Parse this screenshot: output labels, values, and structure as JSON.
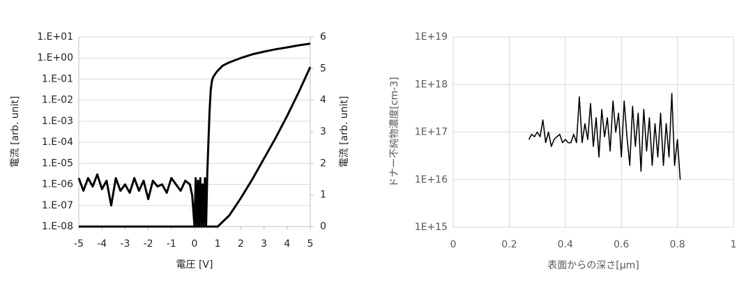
{
  "chart_data": [
    {
      "type": "line",
      "x_label": "電圧 [V]",
      "y_label": "電流 [arb. unit]",
      "y2_label": "電流 [arb. unit]",
      "xlim": [
        -5,
        5
      ],
      "xticks": [
        -5,
        -4,
        -3,
        -2,
        -1,
        0,
        1,
        2,
        3,
        4,
        5
      ],
      "ylim": [
        1e-08,
        10
      ],
      "ylog": true,
      "yticks": [
        {
          "value": 1e-08,
          "label": "1.E-08"
        },
        {
          "value": 1e-07,
          "label": "1.E-07"
        },
        {
          "value": 1e-06,
          "label": "1.E-06"
        },
        {
          "value": 1e-05,
          "label": "1.E-05"
        },
        {
          "value": 0.0001,
          "label": "1.E-04"
        },
        {
          "value": 0.001,
          "label": "1.E-03"
        },
        {
          "value": 0.01,
          "label": "1.E-02"
        },
        {
          "value": 0.1,
          "label": "1.E-01"
        },
        {
          "value": 1,
          "label": "1.E+00"
        },
        {
          "value": 10,
          "label": "1.E+01"
        }
      ],
      "y2lim": [
        0,
        6
      ],
      "y2ticks": [
        0,
        1,
        2,
        3,
        4,
        5,
        6
      ],
      "grid": [
        "y"
      ],
      "series": [
        {
          "color": "#000000",
          "x": [
            -5,
            -4.8,
            -4.6,
            -4.4,
            -4.2,
            -4,
            -3.8,
            -3.6,
            -3.4,
            -3.2,
            -3,
            -2.8,
            -2.6,
            -2.4,
            -2.2,
            -2,
            -1.8,
            -1.6,
            -1.4,
            -1.2,
            -1,
            -0.8,
            -0.6,
            -0.4,
            -0.2,
            -0.1,
            0,
            0.05,
            0.1,
            0.15,
            0.2,
            0.25,
            0.3,
            0.35,
            0.4,
            0.45,
            0.5,
            0.55,
            0.6,
            0.65,
            0.7,
            0.75,
            0.8,
            0.9,
            1,
            1.1,
            1.2,
            1.4,
            1.6,
            2,
            2.5,
            3,
            3.5,
            4,
            4.5,
            5
          ],
          "values": [
            2e-06,
            5e-07,
            2e-06,
            8e-07,
            3e-06,
            6e-07,
            1.5e-06,
            1e-07,
            2e-06,
            5e-07,
            1e-06,
            4e-07,
            2e-06,
            5e-07,
            1.5e-06,
            2e-07,
            1.5e-06,
            8e-07,
            1e-06,
            4e-07,
            2e-06,
            1e-06,
            5e-07,
            1.5e-06,
            1e-06,
            3e-07,
            1e-08,
            2e-06,
            1e-08,
            1.5e-06,
            1e-08,
            2e-06,
            1e-08,
            1e-06,
            1e-08,
            2e-06,
            1e-08,
            3e-06,
            0.0001,
            0.003,
            0.03,
            0.08,
            0.12,
            0.18,
            0.25,
            0.32,
            0.42,
            0.55,
            0.68,
            1.0,
            1.5,
            2.0,
            2.6,
            3.2,
            4.0,
            4.8
          ]
        },
        {
          "color": "#000000",
          "axis": "y2",
          "x": [
            -5,
            1,
            1.5,
            2,
            2.5,
            3,
            3.5,
            4,
            4.5,
            5
          ],
          "values": [
            0,
            0,
            0.35,
            0.9,
            1.5,
            2.15,
            2.8,
            3.5,
            4.25,
            5.05
          ]
        }
      ]
    },
    {
      "type": "line",
      "x_label": "表面からの深さ[μm]",
      "y_label": "ドナー不純物濃度[cm-3]",
      "xlim": [
        0,
        1
      ],
      "xticks": [
        0,
        0.2,
        0.4,
        0.6,
        0.8,
        1
      ],
      "ylim": [
        1000000000000000.0,
        1e+19
      ],
      "ylog": true,
      "yticks": [
        {
          "value": 1000000000000000.0,
          "label": "1E+15"
        },
        {
          "value": 1e+16,
          "label": "1E+16"
        },
        {
          "value": 1e+17,
          "label": "1E+17"
        },
        {
          "value": 1e+18,
          "label": "1E+18"
        },
        {
          "value": 1e+19,
          "label": "1E+19"
        }
      ],
      "grid": [
        "x",
        "y"
      ],
      "series": [
        {
          "color": "#000000",
          "x": [
            0.27,
            0.28,
            0.29,
            0.3,
            0.31,
            0.32,
            0.33,
            0.34,
            0.35,
            0.36,
            0.37,
            0.38,
            0.39,
            0.4,
            0.41,
            0.42,
            0.43,
            0.44,
            0.45,
            0.46,
            0.47,
            0.48,
            0.49,
            0.5,
            0.51,
            0.52,
            0.53,
            0.54,
            0.55,
            0.56,
            0.57,
            0.58,
            0.59,
            0.6,
            0.61,
            0.62,
            0.63,
            0.64,
            0.65,
            0.66,
            0.67,
            0.68,
            0.69,
            0.7,
            0.71,
            0.72,
            0.73,
            0.74,
            0.75,
            0.76,
            0.77,
            0.78,
            0.79,
            0.8,
            0.81
          ],
          "values": [
            7e+16,
            9e+16,
            8e+16,
            1e+17,
            8e+16,
            1.8e+17,
            6e+16,
            1e+17,
            5e+16,
            7e+16,
            8e+16,
            9e+16,
            6e+16,
            7e+16,
            6e+16,
            6e+16,
            9e+16,
            6e+16,
            5.5e+17,
            6e+16,
            1.5e+17,
            7e+16,
            4e+17,
            5e+16,
            2e+17,
            3e+16,
            3e+17,
            8e+16,
            2e+17,
            4e+16,
            4.5e+17,
            1e+17,
            2.5e+17,
            3e+16,
            4.5e+17,
            8e+16,
            2e+16,
            3.5e+17,
            5e+16,
            2.5e+17,
            1.5e+16,
            3e+17,
            4e+16,
            2e+17,
            2e+16,
            1.5e+17,
            3e+16,
            2.5e+17,
            2e+16,
            1.5e+17,
            3e+16,
            6.5e+17,
            2e+16,
            7e+16,
            1e+16
          ]
        }
      ]
    }
  ]
}
